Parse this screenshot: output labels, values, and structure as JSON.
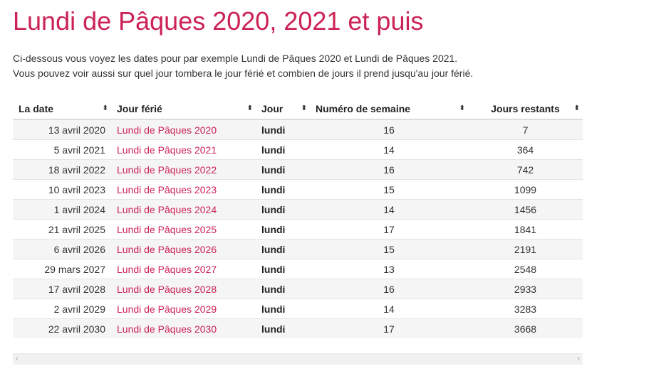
{
  "page": {
    "title": "Lundi de Pâques 2020, 2021 et puis",
    "intro_line1": "Ci-dessous vous voyez les dates pour par exemple Lundi de Pâques 2020 et Lundi de Pâques 2021.",
    "intro_line2": "Vous pouvez voir aussi sur quel jour tombera le jour férié et combien de jours il prend jusqu'au jour férié."
  },
  "table": {
    "headers": {
      "date": "La date",
      "holiday": "Jour férié",
      "day": "Jour",
      "week": "Numéro de semaine",
      "remaining": "Jours restants"
    },
    "sort_glyph": "⬍",
    "rows": [
      {
        "date": "13 avril 2020",
        "holiday": "Lundi de Pâques 2020",
        "day": "lundi",
        "week": "16",
        "remaining": "7"
      },
      {
        "date": "5 avril 2021",
        "holiday": "Lundi de Pâques 2021",
        "day": "lundi",
        "week": "14",
        "remaining": "364"
      },
      {
        "date": "18 avril 2022",
        "holiday": "Lundi de Pâques 2022",
        "day": "lundi",
        "week": "16",
        "remaining": "742"
      },
      {
        "date": "10 avril 2023",
        "holiday": "Lundi de Pâques 2023",
        "day": "lundi",
        "week": "15",
        "remaining": "1099"
      },
      {
        "date": "1 avril 2024",
        "holiday": "Lundi de Pâques 2024",
        "day": "lundi",
        "week": "14",
        "remaining": "1456"
      },
      {
        "date": "21 avril 2025",
        "holiday": "Lundi de Pâques 2025",
        "day": "lundi",
        "week": "17",
        "remaining": "1841"
      },
      {
        "date": "6 avril 2026",
        "holiday": "Lundi de Pâques 2026",
        "day": "lundi",
        "week": "15",
        "remaining": "2191"
      },
      {
        "date": "29 mars 2027",
        "holiday": "Lundi de Pâques 2027",
        "day": "lundi",
        "week": "13",
        "remaining": "2548"
      },
      {
        "date": "17 avril 2028",
        "holiday": "Lundi de Pâques 2028",
        "day": "lundi",
        "week": "16",
        "remaining": "2933"
      },
      {
        "date": "2 avril 2029",
        "holiday": "Lundi de Pâques 2029",
        "day": "lundi",
        "week": "14",
        "remaining": "3283"
      },
      {
        "date": "22 avril 2030",
        "holiday": "Lundi de Pâques 2030",
        "day": "lundi",
        "week": "17",
        "remaining": "3668"
      }
    ]
  },
  "scrollbar": {
    "left_arrow": "‹",
    "right_arrow": "›"
  },
  "colors": {
    "accent": "#cc2255",
    "stripe": "#f5f5f5"
  }
}
